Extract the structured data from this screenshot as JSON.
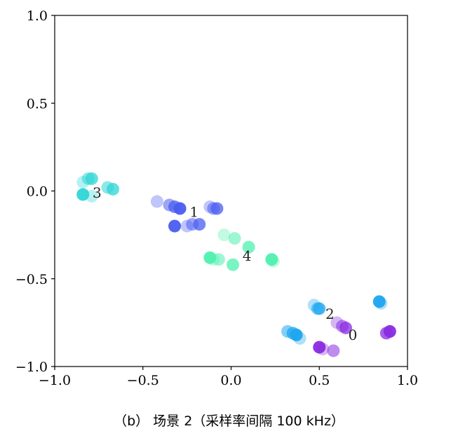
{
  "caption": "（b） 场景 2（采样率间隔 100 kHz）",
  "chart_data": {
    "type": "scatter",
    "title": "",
    "xlabel": "",
    "ylabel": "",
    "xlim": [
      -1.0,
      1.0
    ],
    "ylim": [
      -1.0,
      1.0
    ],
    "xticks": [
      -1.0,
      -0.5,
      0.0,
      0.5,
      1.0
    ],
    "yticks": [
      -1.0,
      -0.5,
      0.0,
      0.5,
      1.0
    ],
    "xtick_labels": [
      "−1.0",
      "−0.5",
      "0.0",
      "0.5",
      "1.0"
    ],
    "ytick_labels": [
      "−1.0",
      "−0.5",
      "0.0",
      "0.5",
      "1.0"
    ],
    "grid": false,
    "clusters": [
      {
        "label": "0",
        "label_pos": [
          0.69,
          -0.82
        ],
        "color": "#8a2be2",
        "points": [
          [
            0.6,
            -0.75
          ],
          [
            0.63,
            -0.77
          ],
          [
            0.65,
            -0.78
          ],
          [
            0.5,
            -0.89
          ],
          [
            0.52,
            -0.9
          ],
          [
            0.58,
            -0.91
          ],
          [
            0.88,
            -0.81
          ],
          [
            0.9,
            -0.8
          ]
        ]
      },
      {
        "label": "1",
        "label_pos": [
          -0.21,
          -0.12
        ],
        "color": "#4a5cf0",
        "points": [
          [
            -0.42,
            -0.06
          ],
          [
            -0.35,
            -0.08
          ],
          [
            -0.32,
            -0.09
          ],
          [
            -0.29,
            -0.1
          ],
          [
            -0.12,
            -0.09
          ],
          [
            -0.1,
            -0.1
          ],
          [
            -0.08,
            -0.1
          ],
          [
            -0.32,
            -0.2
          ],
          [
            -0.25,
            -0.2
          ],
          [
            -0.22,
            -0.19
          ],
          [
            -0.18,
            -0.19
          ]
        ]
      },
      {
        "label": "2",
        "label_pos": [
          0.56,
          -0.7
        ],
        "color": "#1ea7f0",
        "points": [
          [
            0.47,
            -0.65
          ],
          [
            0.49,
            -0.67
          ],
          [
            0.5,
            -0.67
          ],
          [
            0.84,
            -0.63
          ],
          [
            0.85,
            -0.64
          ],
          [
            0.32,
            -0.8
          ],
          [
            0.35,
            -0.81
          ],
          [
            0.37,
            -0.82
          ],
          [
            0.39,
            -0.84
          ]
        ]
      },
      {
        "label": "3",
        "label_pos": [
          -0.76,
          -0.01
        ],
        "color": "#2ed6d6",
        "points": [
          [
            -0.84,
            0.05
          ],
          [
            -0.81,
            0.07
          ],
          [
            -0.79,
            0.07
          ],
          [
            -0.84,
            -0.02
          ],
          [
            -0.79,
            -0.03
          ],
          [
            -0.7,
            0.02
          ],
          [
            -0.67,
            0.01
          ]
        ]
      },
      {
        "label": "4",
        "label_pos": [
          0.09,
          -0.37
        ],
        "color": "#4ff0b0",
        "points": [
          [
            -0.04,
            -0.25
          ],
          [
            0.02,
            -0.27
          ],
          [
            0.1,
            -0.32
          ],
          [
            -0.12,
            -0.38
          ],
          [
            -0.1,
            -0.39
          ],
          [
            -0.07,
            -0.39
          ],
          [
            0.01,
            -0.42
          ],
          [
            0.23,
            -0.39
          ],
          [
            0.24,
            -0.4
          ]
        ]
      }
    ]
  }
}
